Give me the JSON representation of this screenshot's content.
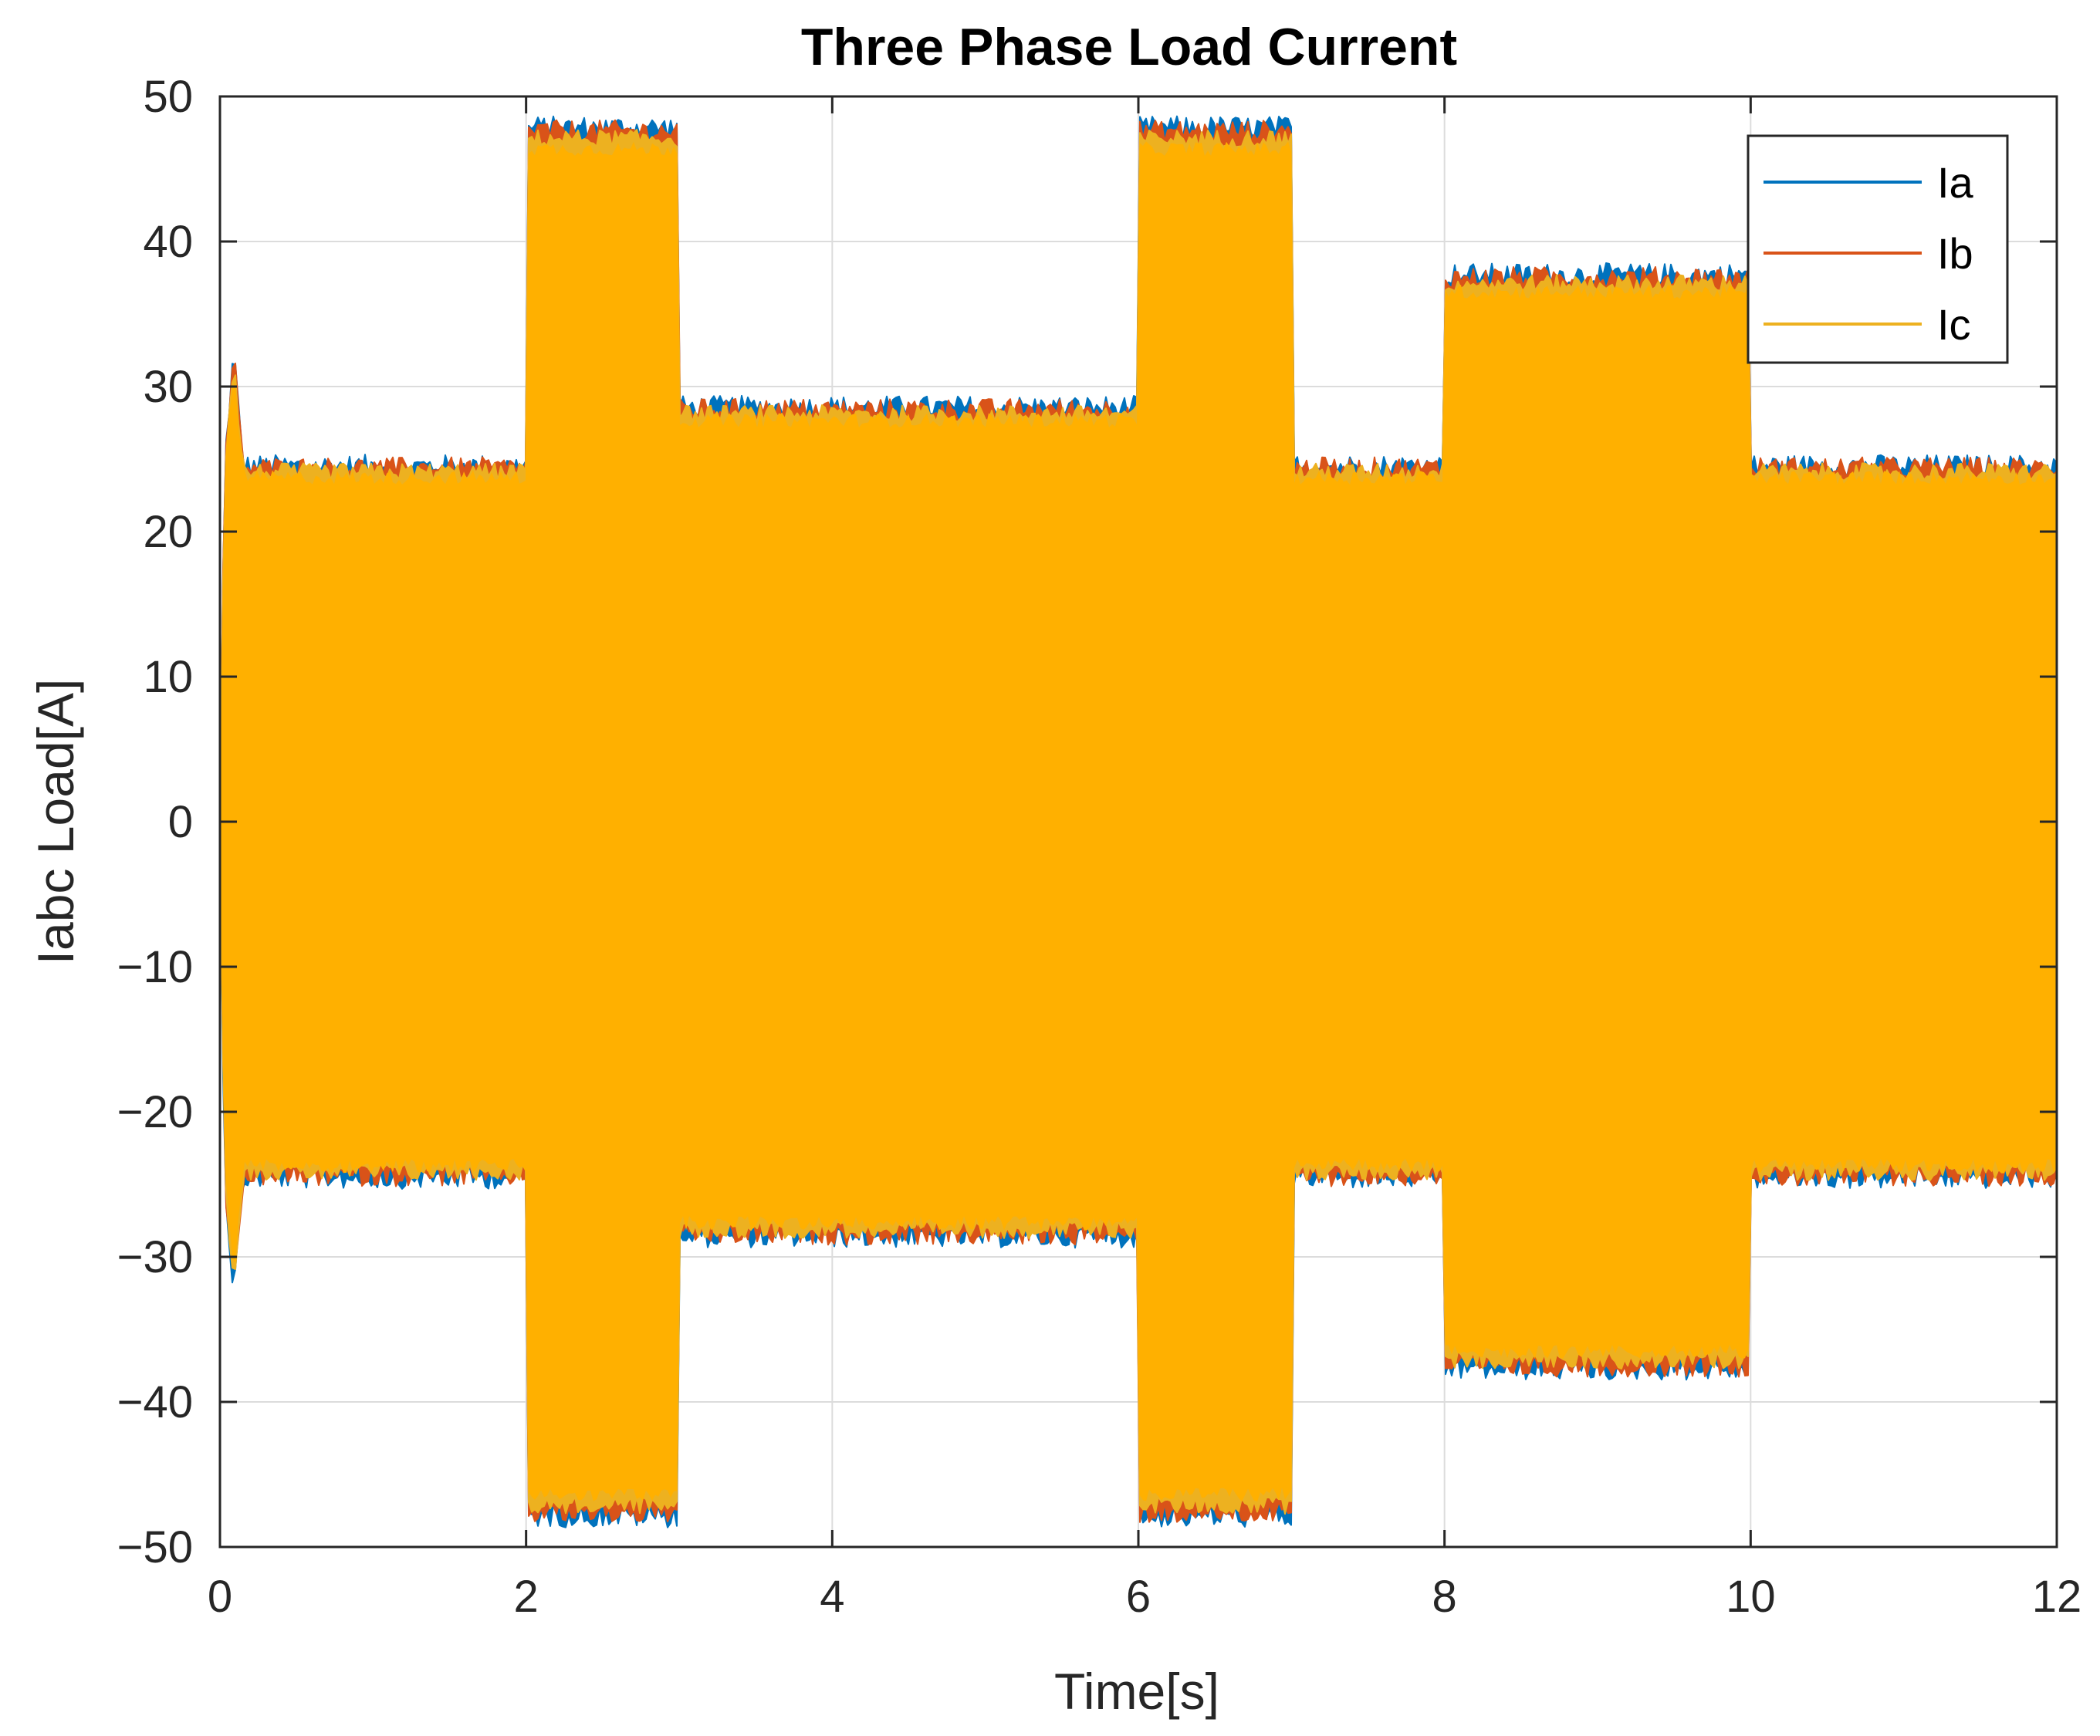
{
  "chart_data": {
    "type": "line",
    "title": "Three Phase Load Current",
    "xlabel": "Time[s]",
    "ylabel": "Iabc Load[A]",
    "xlim": [
      0,
      12
    ],
    "ylim": [
      -50,
      50
    ],
    "xticks": [
      0,
      2,
      4,
      6,
      8,
      10,
      12
    ],
    "yticks": [
      50,
      40,
      30,
      20,
      10,
      0,
      -10,
      -20,
      -30,
      -40,
      -50
    ],
    "xtick_labels": [
      "0",
      "2",
      "4",
      "6",
      "8",
      "10",
      "12"
    ],
    "ytick_labels": [
      "50",
      "40",
      "30",
      "20",
      "10",
      "0",
      "−10",
      "−20",
      "−30",
      "−40",
      "−50"
    ],
    "grid": true,
    "legend_position": "top-right",
    "segments": [
      {
        "t_start": 0,
        "t_end": 2,
        "peak_amplitude": 24
      },
      {
        "t_start": 2,
        "t_end": 3,
        "peak_amplitude": 47
      },
      {
        "t_start": 3,
        "t_end": 6,
        "peak_amplitude": 28
      },
      {
        "t_start": 6,
        "t_end": 7,
        "peak_amplitude": 47
      },
      {
        "t_start": 7,
        "t_end": 8,
        "peak_amplitude": 24
      },
      {
        "t_start": 8,
        "t_end": 10,
        "peak_amplitude": 37
      },
      {
        "t_start": 10,
        "t_end": 12,
        "peak_amplitude": 24
      }
    ],
    "startup_transient_peak": 31,
    "series": [
      {
        "name": "Ia",
        "color": "#0072BD"
      },
      {
        "name": "Ib",
        "color": "#D95319"
      },
      {
        "name": "Ic",
        "color": "#EDB120"
      }
    ]
  }
}
